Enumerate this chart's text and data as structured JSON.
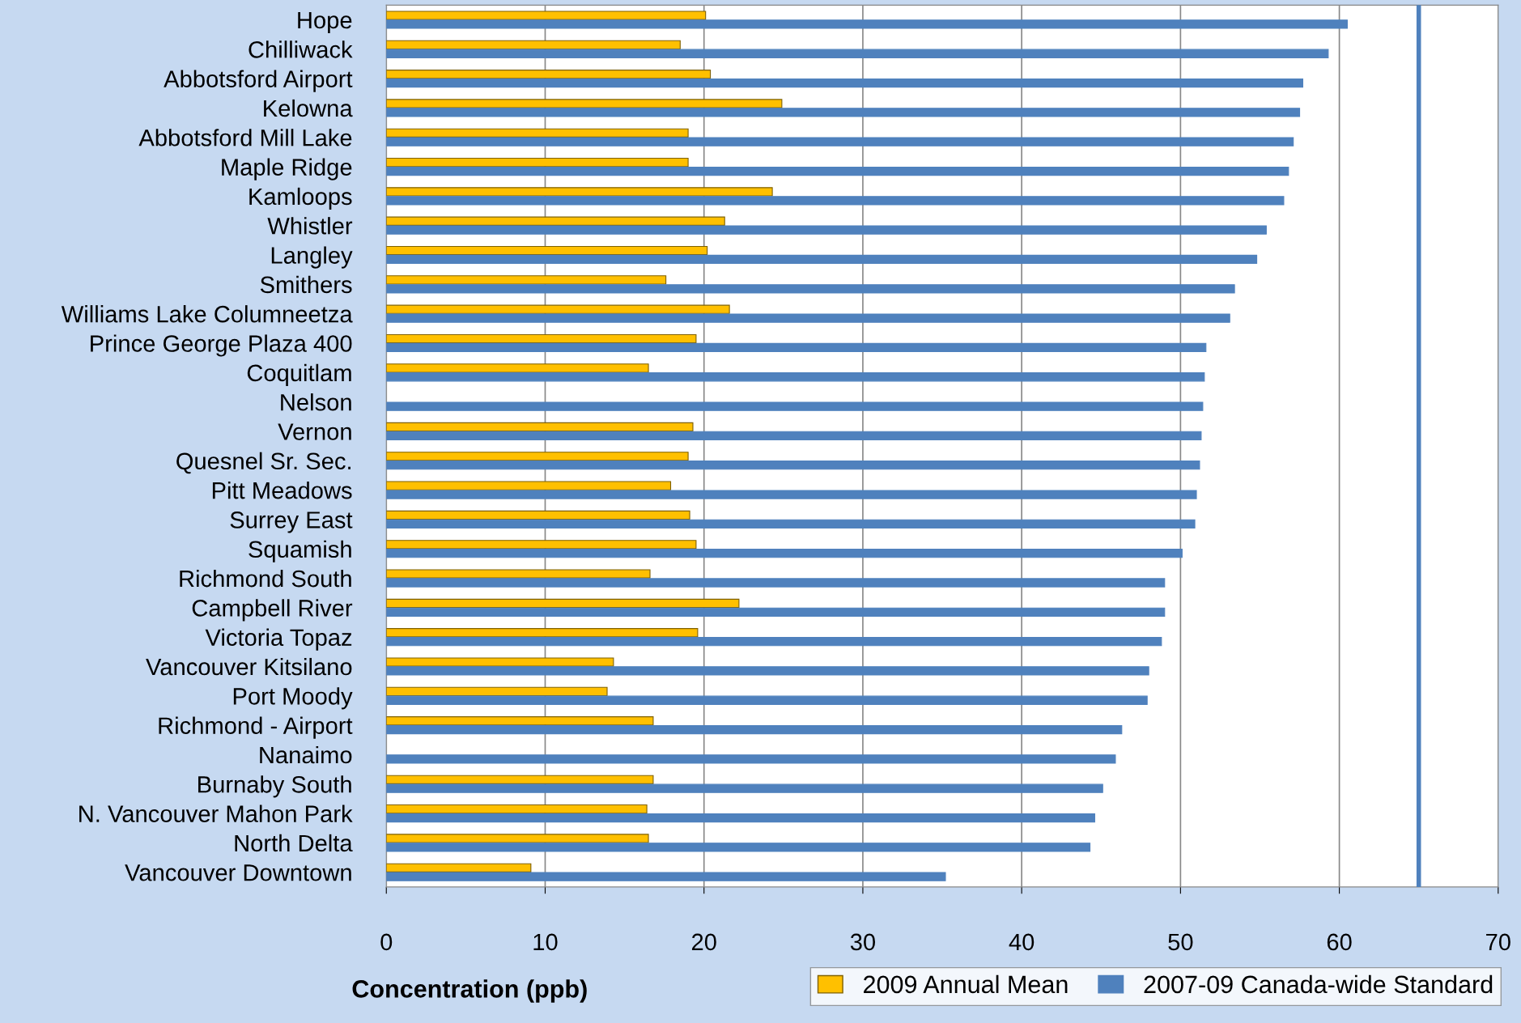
{
  "chart_data": {
    "type": "bar",
    "orientation": "horizontal",
    "xlabel": "Concentration (ppb)",
    "categories": [
      "Hope",
      "Chilliwack",
      "Abbotsford Airport",
      "Kelowna",
      "Abbotsford Mill Lake",
      "Maple Ridge",
      "Kamloops",
      "Whistler",
      "Langley",
      "Smithers",
      "Williams Lake Columneetza",
      "Prince George Plaza 400",
      "Coquitlam",
      "Nelson",
      "Vernon",
      "Quesnel Sr. Sec.",
      "Pitt Meadows",
      "Surrey East",
      "Squamish",
      "Richmond South",
      "Campbell River",
      "Victoria Topaz",
      "Vancouver Kitsilano",
      "Port Moody",
      "Richmond - Airport",
      "Nanaimo",
      "Burnaby South",
      "N. Vancouver Mahon Park",
      "North Delta",
      "Vancouver Downtown"
    ],
    "series": [
      {
        "name": "2009 Annual Mean",
        "color": "#ffc000",
        "values": [
          20.1,
          18.5,
          20.4,
          24.9,
          19.0,
          19.0,
          24.3,
          21.3,
          20.2,
          17.6,
          21.6,
          19.5,
          16.5,
          null,
          19.3,
          19.0,
          17.9,
          19.1,
          19.5,
          16.6,
          22.2,
          19.6,
          14.3,
          13.9,
          16.8,
          null,
          16.8,
          16.4,
          16.5,
          9.1
        ]
      },
      {
        "name": "2007-09 Canada-wide Standard",
        "color": "#4f81bd",
        "values": [
          60.5,
          59.3,
          57.7,
          57.5,
          57.1,
          56.8,
          56.5,
          55.4,
          54.8,
          53.4,
          53.1,
          51.6,
          51.5,
          51.4,
          51.3,
          51.2,
          51.0,
          50.9,
          50.1,
          49.0,
          49.0,
          48.8,
          48.0,
          47.9,
          46.3,
          45.9,
          45.1,
          44.6,
          44.3,
          35.2
        ]
      }
    ],
    "xlim": [
      0,
      70
    ],
    "xticks": [
      0,
      10,
      20,
      30,
      40,
      50,
      60,
      70
    ],
    "grid": "x",
    "legend": "bottom",
    "ref_lines": [
      {
        "axis": "x",
        "value": 65,
        "color": "#4f81bd"
      }
    ]
  }
}
